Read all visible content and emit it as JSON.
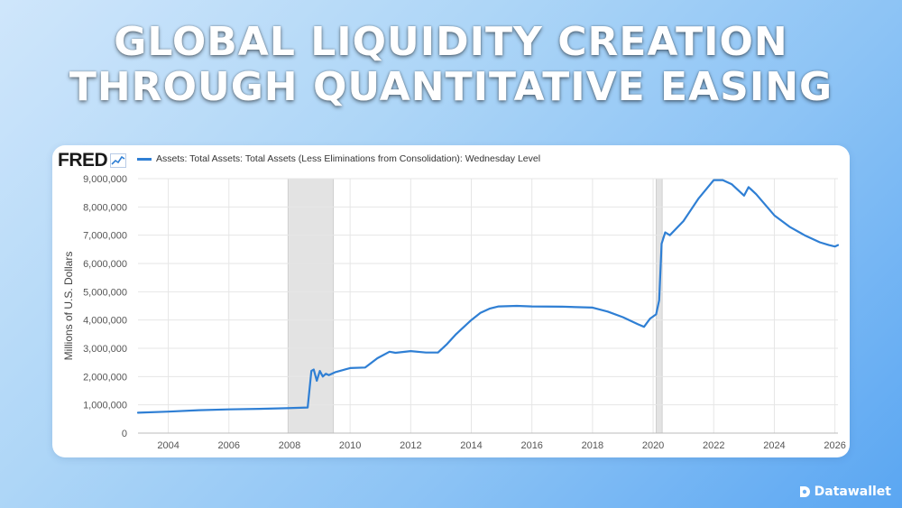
{
  "headline": {
    "line1": "GLOBAL LIQUIDITY CREATION",
    "line2": "THROUGH QUANTITATIVE EASING"
  },
  "source": {
    "logo_text": "FRED",
    "logo_icon": "line-chart-icon"
  },
  "watermark": {
    "text": "Datawallet",
    "icon": "datawallet-logo-icon"
  },
  "colors": {
    "series": "#2f7fd4",
    "recession_shade": "#e3e3e3",
    "grid": "#e6e6e6"
  },
  "chart_data": {
    "type": "line",
    "title": "",
    "xlabel": "",
    "ylabel": "Millions of U.S. Dollars",
    "xlim": [
      2003.0,
      2026.1
    ],
    "ylim": [
      0,
      9000000
    ],
    "xticks": [
      2004,
      2006,
      2008,
      2010,
      2012,
      2014,
      2016,
      2018,
      2020,
      2022,
      2024,
      2026
    ],
    "xtick_labels": [
      "2004",
      "2006",
      "2008",
      "2010",
      "2012",
      "2014",
      "2016",
      "2018",
      "2020",
      "2022",
      "2024",
      "2026"
    ],
    "yticks": [
      0,
      1000000,
      2000000,
      3000000,
      4000000,
      5000000,
      6000000,
      7000000,
      8000000,
      9000000
    ],
    "ytick_labels": [
      "0",
      "1,000,000",
      "2,000,000",
      "3,000,000",
      "4,000,000",
      "5,000,000",
      "6,000,000",
      "7,000,000",
      "8,000,000",
      "9,000,000"
    ],
    "grid": true,
    "legend_position": "top-left",
    "recession_bands": [
      [
        2007.95,
        2009.45
      ],
      [
        2020.1,
        2020.3
      ]
    ],
    "series": [
      {
        "name": "Assets: Total Assets: Total Assets (Less Eliminations from Consolidation): Wednesday Level",
        "x": [
          2003.0,
          2004.0,
          2005.0,
          2006.0,
          2007.0,
          2007.9,
          2008.6,
          2008.72,
          2008.8,
          2008.9,
          2009.0,
          2009.1,
          2009.2,
          2009.3,
          2009.5,
          2010.0,
          2010.5,
          2010.9,
          2011.3,
          2011.5,
          2012.0,
          2012.5,
          2012.9,
          2013.2,
          2013.5,
          2014.0,
          2014.3,
          2014.6,
          2014.9,
          2015.5,
          2016.0,
          2017.0,
          2018.0,
          2018.5,
          2019.0,
          2019.5,
          2019.7,
          2019.9,
          2020.1,
          2020.2,
          2020.28,
          2020.4,
          2020.55,
          2021.0,
          2021.5,
          2022.0,
          2022.3,
          2022.6,
          2023.0,
          2023.15,
          2023.25,
          2023.4,
          2024.0,
          2024.5,
          2025.0,
          2025.5,
          2025.8,
          2026.0,
          2026.1
        ],
        "y": [
          720000,
          760000,
          810000,
          840000,
          860000,
          880000,
          905000,
          2200000,
          2250000,
          1850000,
          2200000,
          2000000,
          2100000,
          2050000,
          2150000,
          2300000,
          2320000,
          2650000,
          2880000,
          2840000,
          2900000,
          2850000,
          2850000,
          3150000,
          3500000,
          4000000,
          4250000,
          4400000,
          4480000,
          4500000,
          4480000,
          4470000,
          4440000,
          4300000,
          4100000,
          3850000,
          3760000,
          4050000,
          4200000,
          4700000,
          6700000,
          7100000,
          7000000,
          7500000,
          8300000,
          8950000,
          8950000,
          8800000,
          8400000,
          8700000,
          8600000,
          8450000,
          7700000,
          7300000,
          7000000,
          6750000,
          6650000,
          6600000,
          6650000
        ]
      }
    ]
  }
}
